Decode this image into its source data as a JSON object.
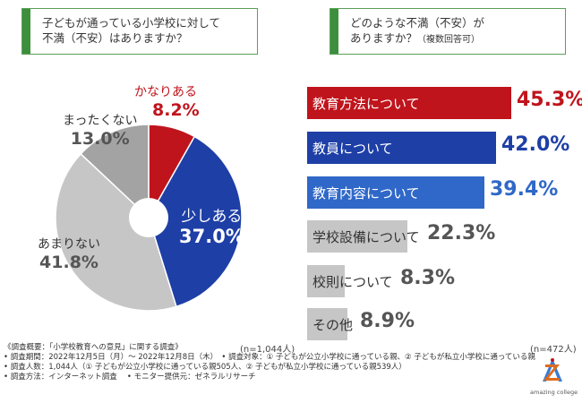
{
  "question_left": {
    "line1": "子どもが通っている小学校に対して",
    "line2": "不満（不安）はありますか？"
  },
  "question_right": {
    "line1": "どのような不満（不安）が",
    "line2_main": "ありますか？",
    "line2_small": "（複数回答可）"
  },
  "colors": {
    "red": "#c0141c",
    "dark_blue": "#1e3fa6",
    "mid_blue": "#2f68c8",
    "dark_gray": "#a3a3a3",
    "light_gray": "#c6c6c6",
    "accent_green": "#3d8f3d"
  },
  "chart_data": [
    {
      "type": "pie",
      "title": "子どもが通っている小学校に対して不満（不安）はありますか？",
      "categories": [
        "かなりある",
        "少しある",
        "あまりない",
        "まったくない"
      ],
      "values": [
        8.2,
        37.0,
        41.8,
        13.0
      ],
      "value_labels": [
        "8.2%",
        "37.0%",
        "41.8%",
        "13.0%"
      ],
      "sample_size": "(n=1,044人)"
    },
    {
      "type": "bar",
      "orientation": "horizontal",
      "title": "どのような不満（不安）がありますか？（複数回答可）",
      "categories": [
        "教育方法について",
        "教員について",
        "教育内容について",
        "学校設備について",
        "校則について",
        "その他"
      ],
      "values": [
        45.3,
        42.0,
        39.4,
        22.3,
        8.3,
        8.9
      ],
      "value_labels": [
        "45.3%",
        "42.0%",
        "39.4%",
        "22.3%",
        "8.3%",
        "8.9%"
      ],
      "sample_size": "(n=472人)"
    }
  ],
  "notes": [
    "《調査概要：「小学校教育への意見」に関する調査》",
    "• 調査期間：2022年12月5日（月）～ 2022年12月8日（木）　• 調査対象：① 子どもが公立小学校に通っている親、② 子どもが私立小学校に通っている親",
    "• 調査人数：1,044人（① 子どもが公立小学校に通っている親505人、② 子どもが私立小学校に通っている親539人）",
    "• 調査方法：インターネット調査　 • モニター提供元：ゼネラルリサーチ"
  ],
  "logo": {
    "brand": "amazing college",
    "icon": "az-logo-icon"
  }
}
